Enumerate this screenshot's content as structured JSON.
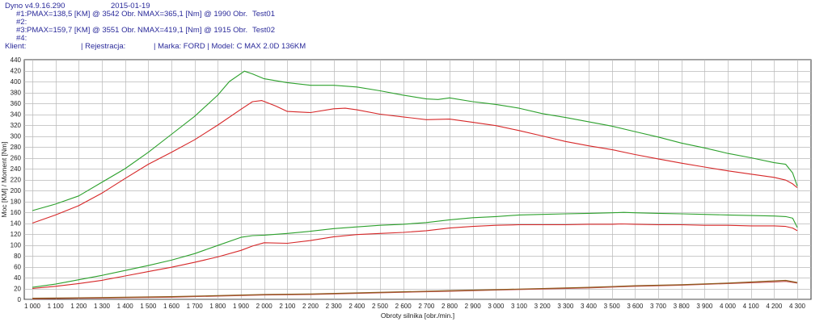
{
  "header": {
    "app": "Dyno v4.9.16.290",
    "date": "2015-01-19",
    "run1_id": "#1:",
    "run1_pmax": "PMAX=138,5 [KM] @ 3542 Obr.",
    "run1_nmax": "NMAX=365,1 [Nm] @ 1990 Obr.",
    "run1_name": "Test01",
    "run2_id": "#2:",
    "run3_id": "#3:",
    "run3_pmax": "PMAX=159,7 [KM] @ 3551 Obr.",
    "run3_nmax": "NMAX=419,1 [Nm] @ 1915 Obr.",
    "run3_name": "Test02",
    "run4_id": "#4:",
    "client_label": "Klient:",
    "registration_label": "| Rejestracja:",
    "vehicle": "| Marka: FORD | Model: C MAX 2.0D 136KM"
  },
  "chart_data": {
    "type": "line",
    "xlabel": "Obroty silnika [obr./min.]",
    "ylabel": "Moc [KM] / Moment [Nm]",
    "xlim": [
      1000,
      4300
    ],
    "ylim": [
      0,
      440
    ],
    "x_ticks": [
      1000,
      1100,
      1200,
      1300,
      1400,
      1500,
      1600,
      1700,
      1800,
      1900,
      2000,
      2100,
      2200,
      2300,
      2400,
      2500,
      2600,
      2700,
      2800,
      2900,
      3000,
      3100,
      3200,
      3300,
      3400,
      3500,
      3600,
      3700,
      3800,
      3900,
      4000,
      4100,
      4200,
      4300
    ],
    "x_tick_labels": [
      "1 000",
      "1 100",
      "1 200",
      "1 300",
      "1 400",
      "1 500",
      "1 600",
      "1 700",
      "1 800",
      "1 900",
      "2 000",
      "2 100",
      "2 200",
      "2 300",
      "2 400",
      "2 500",
      "2 600",
      "2 700",
      "2 800",
      "2 900",
      "3 000",
      "3 100",
      "3 200",
      "3 300",
      "3 400",
      "3 500",
      "3 600",
      "3 700",
      "3 800",
      "3 900",
      "4 000",
      "4 100",
      "4 200",
      "4 300"
    ],
    "y_ticks": [
      0,
      20,
      40,
      60,
      80,
      100,
      120,
      140,
      160,
      180,
      200,
      220,
      240,
      260,
      280,
      300,
      320,
      340,
      360,
      380,
      400,
      420,
      440
    ],
    "grid": true,
    "colors": {
      "test02": "#2ca02c",
      "test01": "#d62728",
      "losses": "#8b5a1a",
      "grid": "#b8b8b8",
      "frame": "#333333"
    },
    "series": [
      {
        "name": "Test02",
        "color": "#2ca02c",
        "kind": "torque",
        "x": [
          1000,
          1100,
          1200,
          1300,
          1400,
          1500,
          1600,
          1700,
          1800,
          1850,
          1915,
          1950,
          2000,
          2100,
          2200,
          2300,
          2400,
          2500,
          2600,
          2700,
          2750,
          2800,
          2900,
          3000,
          3100,
          3200,
          3300,
          3400,
          3500,
          3600,
          3700,
          3800,
          3900,
          4000,
          4100,
          4200,
          4250,
          4280,
          4300
        ],
        "y": [
          163,
          175,
          190,
          215,
          240,
          270,
          303,
          336,
          375,
          400,
          419,
          414,
          405,
          398,
          393,
          393,
          390,
          383,
          375,
          368,
          367,
          370,
          363,
          358,
          351,
          341,
          334,
          326,
          318,
          308,
          298,
          287,
          278,
          268,
          260,
          251,
          248,
          232,
          208
        ]
      },
      {
        "name": "Test01",
        "color": "#d62728",
        "kind": "torque",
        "x": [
          1000,
          1100,
          1200,
          1300,
          1400,
          1500,
          1600,
          1700,
          1800,
          1900,
          1950,
          1990,
          2050,
          2100,
          2200,
          2300,
          2350,
          2400,
          2500,
          2600,
          2700,
          2800,
          2900,
          3000,
          3100,
          3200,
          3300,
          3400,
          3500,
          3600,
          3700,
          3800,
          3900,
          4000,
          4100,
          4200,
          4250,
          4280,
          4300
        ],
        "y": [
          140,
          155,
          172,
          195,
          222,
          248,
          270,
          293,
          320,
          349,
          363,
          365,
          355,
          345,
          343,
          350,
          351,
          348,
          340,
          335,
          330,
          331,
          325,
          319,
          310,
          300,
          290,
          282,
          275,
          266,
          258,
          250,
          243,
          236,
          230,
          224,
          219,
          212,
          205
        ]
      },
      {
        "name": "Test02",
        "color": "#2ca02c",
        "kind": "power",
        "x": [
          1000,
          1100,
          1200,
          1300,
          1400,
          1500,
          1600,
          1700,
          1800,
          1900,
          1950,
          2000,
          2100,
          2200,
          2300,
          2400,
          2500,
          2600,
          2700,
          2800,
          2900,
          3000,
          3100,
          3200,
          3300,
          3400,
          3500,
          3551,
          3600,
          3700,
          3800,
          3900,
          4000,
          4100,
          4200,
          4250,
          4280,
          4300
        ],
        "y": [
          22,
          28,
          36,
          44,
          53,
          62,
          72,
          84,
          99,
          114,
          117,
          118,
          121,
          125,
          130,
          133,
          136,
          138,
          141,
          146,
          150,
          152,
          155,
          156,
          157,
          158,
          159,
          159.7,
          159,
          158,
          157,
          156,
          155,
          154,
          153,
          152,
          149,
          132
        ]
      },
      {
        "name": "Test01",
        "color": "#d62728",
        "kind": "power",
        "x": [
          1000,
          1100,
          1200,
          1300,
          1400,
          1500,
          1600,
          1700,
          1800,
          1900,
          1950,
          2000,
          2100,
          2200,
          2300,
          2400,
          2500,
          2600,
          2700,
          2800,
          2900,
          3000,
          3100,
          3200,
          3300,
          3400,
          3500,
          3542,
          3600,
          3700,
          3800,
          3900,
          4000,
          4100,
          4200,
          4250,
          4280,
          4300
        ],
        "y": [
          20,
          24,
          29,
          35,
          43,
          51,
          59,
          68,
          78,
          90,
          98,
          104,
          103,
          108,
          115,
          119,
          121,
          123,
          126,
          131,
          134,
          136,
          137,
          137,
          137,
          138,
          138,
          138.5,
          138,
          137,
          137,
          136,
          136,
          135,
          135,
          134,
          131,
          126
        ]
      },
      {
        "name": "Test01 losses",
        "color": "#c0504d",
        "kind": "loss",
        "x": [
          1000,
          1200,
          1400,
          1600,
          1800,
          2000,
          2200,
          2400,
          2600,
          2800,
          3000,
          3200,
          3400,
          3600,
          3800,
          4000,
          4200,
          4250,
          4300
        ],
        "y": [
          1,
          2,
          3,
          4,
          6,
          8,
          9,
          11,
          13,
          15,
          17,
          19,
          21,
          24,
          26,
          29,
          32,
          33,
          30
        ]
      },
      {
        "name": "Test02 losses",
        "color": "#8b5a1a",
        "kind": "loss",
        "x": [
          1000,
          1200,
          1400,
          1600,
          1800,
          2000,
          2200,
          2400,
          2600,
          2800,
          3000,
          3200,
          3400,
          3600,
          3800,
          4000,
          4200,
          4250,
          4300
        ],
        "y": [
          2,
          3,
          4,
          5,
          7,
          9,
          10,
          12,
          14,
          16,
          18,
          20,
          22,
          25,
          27,
          30,
          34,
          35,
          31
        ]
      }
    ]
  }
}
